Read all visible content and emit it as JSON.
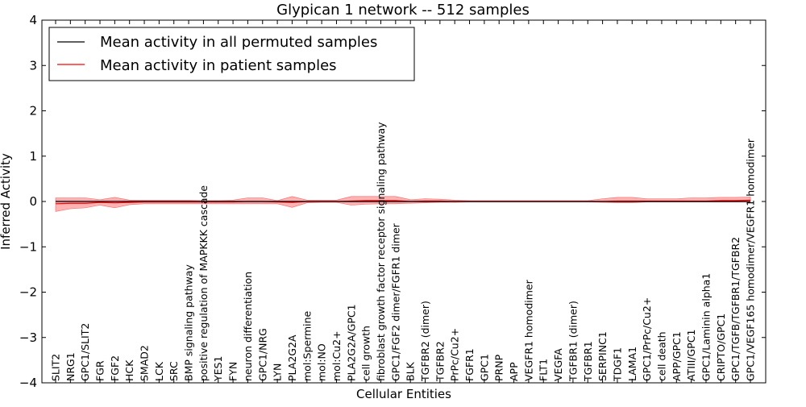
{
  "chart_data": {
    "type": "line",
    "title": "Glypican 1 network -- 512 samples",
    "xlabel": "Cellular Entities",
    "ylabel": "Inferred Activity",
    "ylim": [
      -4,
      4
    ],
    "yticks": [
      -4,
      -3,
      -2,
      -1,
      0,
      1,
      2,
      3,
      4
    ],
    "ytick_labels": [
      "−4",
      "−3",
      "−2",
      "−1",
      "0",
      "1",
      "2",
      "3",
      "4"
    ],
    "grid": false,
    "legend_position": "top-left",
    "categories": [
      "SLIT2",
      "NRG1",
      "GPC1/SLIT2",
      "FGR",
      "FGF2",
      "HCK",
      "SMAD2",
      "LCK",
      "SRC",
      "BMP signaling pathway",
      "positive regulation of MAPKKK cascade",
      "YES1",
      "FYN",
      "neuron differentiation",
      "GPC1/NRG",
      "LYN",
      "PLA2G2A",
      "mol:Spermine",
      "mol:NO",
      "mol:Cu2+",
      "PLA2G2A/GPC1",
      "cell growth",
      "fibroblast growth factor receptor signaling pathway",
      "GPC1/FGF2 dimer/FGFR1 dimer",
      "BLK",
      "TGFBR2 (dimer)",
      "TGFBR2",
      "PrPc/Cu2+",
      "FGFR1",
      "GPC1",
      "PRNP",
      "APP",
      "VEGFR1 homodimer",
      "FLT1",
      "VEGFA",
      "TGFBR1 (dimer)",
      "TGFBR1",
      "SERPINC1",
      "TDGF1",
      "LAMA1",
      "GPC1/PrPc/Cu2+",
      "cell death",
      "APP/GPC1",
      "ATIII/GPC1",
      "GPC1/Laminin alpha1",
      "CRIPTO/GPC1",
      "GPC1/TGFB/TGFBR1/TGFBR2",
      "GPC1/VEGF165 homodimer/VEGFR1 homodimer"
    ],
    "series": [
      {
        "name": "Mean activity in all permuted samples",
        "color": "#000000",
        "values": [
          0.0,
          0.0,
          0.0,
          0.0,
          0.0,
          0.0,
          0.0,
          0.0,
          0.0,
          0.0,
          0.0,
          0.0,
          0.0,
          0.0,
          0.0,
          0.0,
          0.0,
          0.0,
          0.0,
          0.0,
          0.0,
          0.0,
          0.0,
          0.0,
          0.0,
          0.0,
          0.0,
          0.0,
          0.0,
          0.0,
          0.0,
          0.0,
          0.0,
          0.0,
          0.0,
          0.0,
          0.0,
          0.0,
          0.0,
          0.0,
          0.0,
          0.0,
          0.0,
          0.0,
          0.0,
          0.0,
          0.0,
          0.0
        ],
        "band_lower": [
          -0.04,
          -0.04,
          -0.04,
          -0.03,
          -0.04,
          -0.03,
          -0.03,
          -0.03,
          -0.03,
          -0.03,
          -0.03,
          -0.03,
          -0.03,
          -0.03,
          -0.03,
          -0.03,
          -0.03,
          -0.02,
          -0.02,
          -0.02,
          -0.03,
          -0.03,
          -0.03,
          -0.03,
          -0.03,
          -0.03,
          -0.02,
          -0.02,
          -0.02,
          -0.02,
          -0.02,
          -0.02,
          -0.02,
          -0.02,
          -0.02,
          -0.02,
          -0.02,
          -0.02,
          -0.02,
          -0.02,
          -0.02,
          -0.02,
          -0.02,
          -0.02,
          -0.02,
          -0.02,
          -0.02,
          -0.02
        ],
        "band_upper": [
          0.04,
          0.04,
          0.04,
          0.03,
          0.04,
          0.03,
          0.03,
          0.03,
          0.03,
          0.03,
          0.03,
          0.03,
          0.03,
          0.03,
          0.03,
          0.03,
          0.03,
          0.02,
          0.02,
          0.02,
          0.03,
          0.03,
          0.03,
          0.03,
          0.03,
          0.03,
          0.02,
          0.02,
          0.02,
          0.02,
          0.02,
          0.02,
          0.02,
          0.02,
          0.02,
          0.02,
          0.02,
          0.02,
          0.02,
          0.02,
          0.02,
          0.02,
          0.02,
          0.02,
          0.02,
          0.02,
          0.02,
          0.02
        ],
        "band_color": "#c8d2e6"
      },
      {
        "name": "Mean activity in patient samples",
        "color": "#ff0000",
        "values": [
          -0.05,
          -0.04,
          -0.04,
          -0.02,
          -0.03,
          -0.02,
          -0.01,
          -0.01,
          -0.01,
          -0.01,
          -0.01,
          -0.01,
          -0.01,
          0.0,
          0.0,
          -0.01,
          -0.02,
          0.0,
          0.0,
          0.0,
          0.01,
          0.02,
          0.02,
          0.02,
          0.0,
          0.01,
          0.01,
          0.0,
          0.0,
          0.0,
          0.0,
          0.0,
          0.0,
          0.0,
          0.0,
          0.0,
          0.0,
          0.0,
          0.01,
          0.01,
          0.01,
          0.01,
          0.01,
          0.01,
          0.01,
          0.02,
          0.02,
          0.03
        ],
        "band_lower": [
          -0.22,
          -0.16,
          -0.14,
          -0.08,
          -0.14,
          -0.07,
          -0.05,
          -0.05,
          -0.05,
          -0.05,
          -0.05,
          -0.05,
          -0.05,
          -0.05,
          -0.05,
          -0.05,
          -0.13,
          -0.03,
          -0.02,
          -0.02,
          -0.08,
          -0.06,
          -0.05,
          -0.05,
          -0.04,
          -0.03,
          -0.02,
          -0.02,
          -0.01,
          -0.01,
          -0.01,
          -0.01,
          -0.01,
          -0.01,
          -0.01,
          -0.01,
          -0.01,
          -0.02,
          -0.03,
          -0.03,
          -0.01,
          -0.01,
          -0.01,
          -0.01,
          -0.01,
          -0.01,
          -0.01,
          -0.01
        ],
        "band_upper": [
          0.08,
          0.08,
          0.08,
          0.04,
          0.09,
          0.03,
          0.03,
          0.03,
          0.03,
          0.03,
          0.02,
          0.02,
          0.03,
          0.08,
          0.08,
          0.02,
          0.11,
          0.03,
          0.03,
          0.03,
          0.11,
          0.11,
          0.11,
          0.11,
          0.04,
          0.06,
          0.05,
          0.03,
          0.02,
          0.02,
          0.02,
          0.02,
          0.02,
          0.02,
          0.02,
          0.02,
          0.02,
          0.06,
          0.09,
          0.09,
          0.06,
          0.06,
          0.06,
          0.08,
          0.08,
          0.09,
          0.09,
          0.1
        ],
        "band_color": "#ff9a9a"
      }
    ]
  }
}
